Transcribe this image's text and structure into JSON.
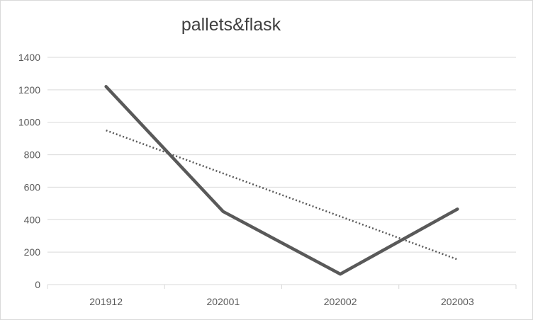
{
  "chart_data": {
    "type": "line",
    "title": "pallets&flask",
    "xlabel": "",
    "ylabel": "",
    "categories": [
      "201912",
      "202001",
      "202002",
      "202003"
    ],
    "series": [
      {
        "values": [
          1220,
          450,
          65,
          465
        ],
        "color": "#595959",
        "style": "solid"
      },
      {
        "values": [
          950,
          685,
          420,
          155
        ],
        "color": "#595959",
        "style": "dotted",
        "kind": "linear-trendline"
      }
    ],
    "ylim": [
      0,
      1400
    ],
    "yticks": [
      "0",
      "200",
      "400",
      "600",
      "800",
      "1000",
      "1200",
      "1400"
    ],
    "grid": true,
    "legend": "none",
    "gridline_color": "#d9d9d9",
    "tick_label_color": "#595959"
  }
}
